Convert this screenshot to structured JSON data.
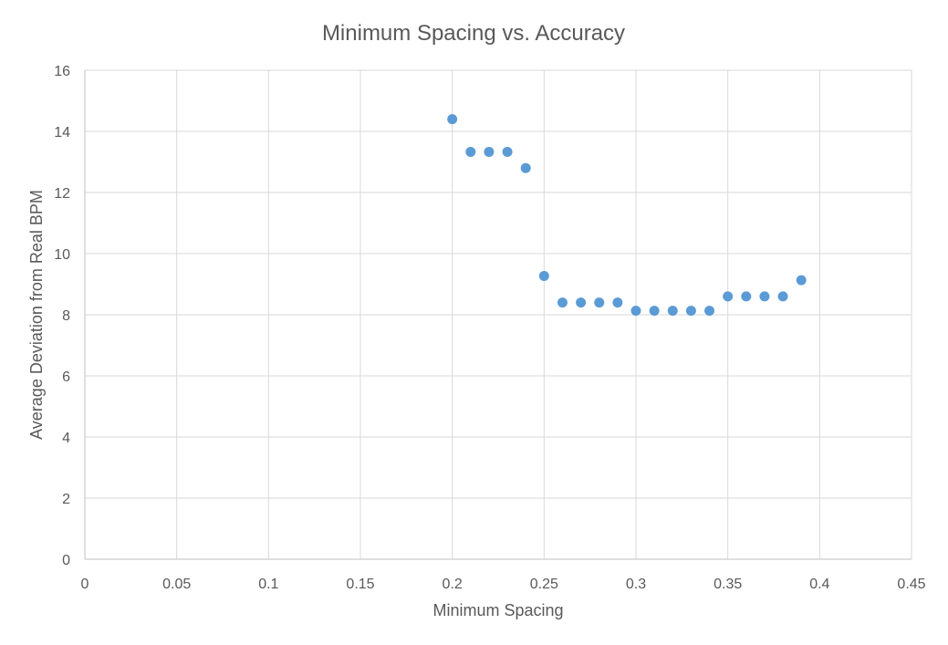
{
  "chart_data": {
    "type": "scatter",
    "title": "Minimum Spacing vs. Accuracy",
    "xlabel": "Minimum Spacing",
    "ylabel": "Average Deviation from Real BPM",
    "xlim": [
      0,
      0.45
    ],
    "ylim": [
      0,
      16
    ],
    "xticks": [
      "0",
      "0.05",
      "0.1",
      "0.15",
      "0.2",
      "0.25",
      "0.3",
      "0.35",
      "0.4",
      "0.45"
    ],
    "yticks": [
      "0",
      "2",
      "4",
      "6",
      "8",
      "10",
      "12",
      "14",
      "16"
    ],
    "grid": true,
    "legend": "none",
    "marker_color": "#5b9bd5",
    "series": [
      {
        "x": [
          0.2,
          0.21,
          0.22,
          0.23,
          0.24,
          0.25,
          0.26,
          0.27,
          0.28,
          0.29,
          0.3,
          0.31,
          0.32,
          0.33,
          0.34,
          0.35,
          0.36,
          0.37,
          0.38,
          0.39
        ],
        "y": [
          14.4,
          13.33,
          13.33,
          13.33,
          12.8,
          9.27,
          8.4,
          8.4,
          8.4,
          8.4,
          8.13,
          8.13,
          8.13,
          8.13,
          8.13,
          8.6,
          8.6,
          8.6,
          8.6,
          9.13
        ]
      }
    ]
  }
}
